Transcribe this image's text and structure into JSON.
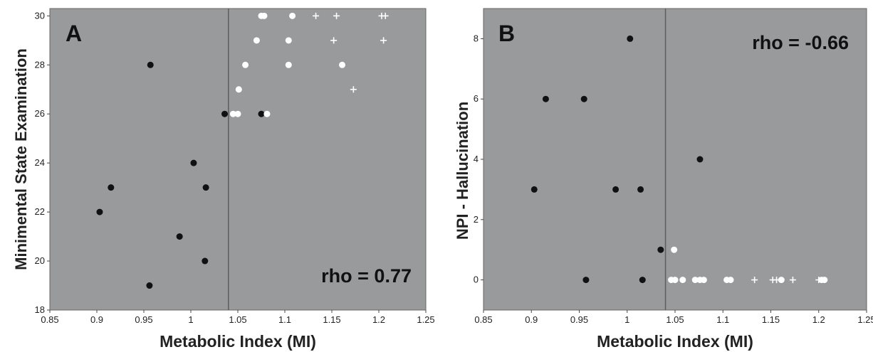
{
  "chart_data": [
    {
      "type": "scatter",
      "panel": "A",
      "annotation": "rho = 0.77",
      "xlabel": "Metabolic Index (MI)",
      "ylabel": "Minimental State Examination",
      "xlim": [
        0.85,
        1.25
      ],
      "ylim": [
        18,
        30.3
      ],
      "xticks": [
        "0.85",
        "0.9",
        "0.95",
        "1",
        "1.05",
        "1.1",
        "1.15",
        "1.2",
        "1.25"
      ],
      "yticks": [
        "18",
        "20",
        "22",
        "24",
        "26",
        "28",
        "30"
      ],
      "threshold_x": 1.04,
      "plot_background": "#999a9c",
      "marker_colors": {
        "black": "#111111",
        "white": "#ffffff",
        "cross": "#ffffff"
      },
      "series": [
        {
          "marker": "black-dot",
          "points": [
            [
              0.957,
              28
            ],
            [
              0.903,
              22
            ],
            [
              0.915,
              23
            ],
            [
              0.956,
              19
            ],
            [
              0.988,
              21
            ],
            [
              1.003,
              24
            ],
            [
              1.015,
              20
            ],
            [
              1.016,
              23
            ],
            [
              1.036,
              26
            ],
            [
              1.075,
              26
            ]
          ]
        },
        {
          "marker": "white-dot",
          "points": [
            [
              1.075,
              30
            ],
            [
              1.078,
              30
            ],
            [
              1.108,
              30
            ],
            [
              1.07,
              29
            ],
            [
              1.104,
              29
            ],
            [
              1.058,
              28
            ],
            [
              1.104,
              28
            ],
            [
              1.161,
              28
            ],
            [
              1.051,
              27
            ],
            [
              1.045,
              26
            ],
            [
              1.05,
              26
            ],
            [
              1.081,
              26
            ]
          ]
        },
        {
          "marker": "cross",
          "points": [
            [
              1.133,
              30
            ],
            [
              1.155,
              30
            ],
            [
              1.203,
              30
            ],
            [
              1.207,
              30
            ],
            [
              1.152,
              29
            ],
            [
              1.205,
              29
            ],
            [
              1.173,
              27
            ]
          ]
        }
      ]
    },
    {
      "type": "scatter",
      "panel": "B",
      "annotation": "rho = -0.66",
      "xlabel": "Metabolic Index (MI)",
      "ylabel": "NPI - Hallucination",
      "xlim": [
        0.85,
        1.25
      ],
      "ylim": [
        -1,
        9
      ],
      "xticks": [
        "0.85",
        "0.9",
        "0.95",
        "1",
        "1.05",
        "1.1",
        "1.15",
        "1.2",
        "1.25"
      ],
      "yticks": [
        "0",
        "2",
        "4",
        "6",
        "8"
      ],
      "threshold_x": 1.04,
      "plot_background": "#999a9c",
      "marker_colors": {
        "black": "#111111",
        "white": "#ffffff",
        "cross": "#ffffff"
      },
      "series": [
        {
          "marker": "black-dot",
          "points": [
            [
              1.003,
              8
            ],
            [
              0.915,
              6
            ],
            [
              0.955,
              6
            ],
            [
              1.076,
              4
            ],
            [
              0.903,
              3
            ],
            [
              0.988,
              3
            ],
            [
              1.014,
              3
            ],
            [
              1.035,
              1
            ],
            [
              0.957,
              0
            ],
            [
              1.016,
              0
            ]
          ]
        },
        {
          "marker": "white-dot",
          "points": [
            [
              1.049,
              1
            ],
            [
              1.046,
              0
            ],
            [
              1.05,
              0
            ],
            [
              1.058,
              0
            ],
            [
              1.071,
              0
            ],
            [
              1.076,
              0
            ],
            [
              1.08,
              0
            ],
            [
              1.104,
              0
            ],
            [
              1.108,
              0
            ],
            [
              1.161,
              0
            ],
            [
              1.203,
              0
            ],
            [
              1.206,
              0
            ]
          ]
        },
        {
          "marker": "cross",
          "points": [
            [
              1.133,
              0
            ],
            [
              1.152,
              0
            ],
            [
              1.156,
              0
            ],
            [
              1.173,
              0
            ],
            [
              1.2,
              0
            ]
          ]
        }
      ]
    }
  ]
}
